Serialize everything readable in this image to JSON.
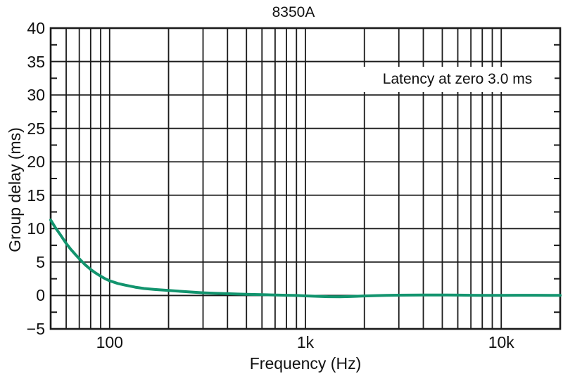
{
  "chart_data": {
    "type": "line",
    "title": "8350A",
    "xlabel": "Frequency (Hz)",
    "ylabel": "Group delay (ms)",
    "annotation": "Latency at zero 3.0 ms",
    "x_scale": "log",
    "xlim": [
      50,
      20000
    ],
    "ylim": [
      -5,
      40
    ],
    "y_major_step": 5,
    "y_minor_step": 2.5,
    "grid": true,
    "legend": false,
    "x_gridlines": [
      60,
      70,
      80,
      90,
      100,
      200,
      300,
      400,
      500,
      600,
      700,
      800,
      900,
      1000,
      2000,
      3000,
      4000,
      5000,
      6000,
      7000,
      8000,
      9000,
      10000,
      20000
    ],
    "x_major_ticks": [
      {
        "value": 100,
        "label": "100"
      },
      {
        "value": 1000,
        "label": "1k"
      },
      {
        "value": 10000,
        "label": "10k"
      }
    ],
    "y_ticks": [
      {
        "value": 40,
        "label": "40"
      },
      {
        "value": 35,
        "label": "35"
      },
      {
        "value": 30,
        "label": "30"
      },
      {
        "value": 25,
        "label": "25"
      },
      {
        "value": 20,
        "label": "20"
      },
      {
        "value": 15,
        "label": "15"
      },
      {
        "value": 10,
        "label": "10"
      },
      {
        "value": 5,
        "label": "5"
      },
      {
        "value": 0,
        "label": "0"
      },
      {
        "value": -5,
        "label": "−5"
      }
    ],
    "colors": {
      "curve": "#12946e",
      "grid": "#1a1a1a",
      "text": "#111111",
      "background": "#ffffff"
    },
    "series": [
      {
        "name": "Group delay",
        "color": "#12946e",
        "points": [
          [
            50,
            11.3
          ],
          [
            53,
            10.1
          ],
          [
            56,
            9.1
          ],
          [
            60,
            7.8
          ],
          [
            63,
            7.0
          ],
          [
            67,
            6.1
          ],
          [
            71,
            5.3
          ],
          [
            75,
            4.6
          ],
          [
            80,
            3.9
          ],
          [
            85,
            3.35
          ],
          [
            90,
            2.9
          ],
          [
            95,
            2.5
          ],
          [
            100,
            2.2
          ],
          [
            110,
            1.8
          ],
          [
            120,
            1.55
          ],
          [
            135,
            1.25
          ],
          [
            150,
            1.05
          ],
          [
            170,
            0.9
          ],
          [
            200,
            0.75
          ],
          [
            230,
            0.63
          ],
          [
            260,
            0.52
          ],
          [
            300,
            0.4
          ],
          [
            350,
            0.32
          ],
          [
            400,
            0.27
          ],
          [
            450,
            0.22
          ],
          [
            500,
            0.18
          ],
          [
            600,
            0.12
          ],
          [
            700,
            0.08
          ],
          [
            800,
            0.04
          ],
          [
            900,
            0.0
          ],
          [
            1000,
            -0.06
          ],
          [
            1150,
            -0.12
          ],
          [
            1300,
            -0.17
          ],
          [
            1500,
            -0.19
          ],
          [
            1700,
            -0.15
          ],
          [
            2000,
            -0.07
          ],
          [
            2300,
            -0.02
          ],
          [
            2600,
            0.02
          ],
          [
            3000,
            0.05
          ],
          [
            4000,
            0.07
          ],
          [
            5000,
            0.08
          ],
          [
            6000,
            0.06
          ],
          [
            7000,
            0.04
          ],
          [
            8000,
            0.03
          ],
          [
            9000,
            0.02
          ],
          [
            10000,
            0.02
          ],
          [
            12000,
            0.04
          ],
          [
            15000,
            0.04
          ],
          [
            18000,
            0.02
          ],
          [
            20000,
            0.01
          ]
        ]
      }
    ]
  }
}
